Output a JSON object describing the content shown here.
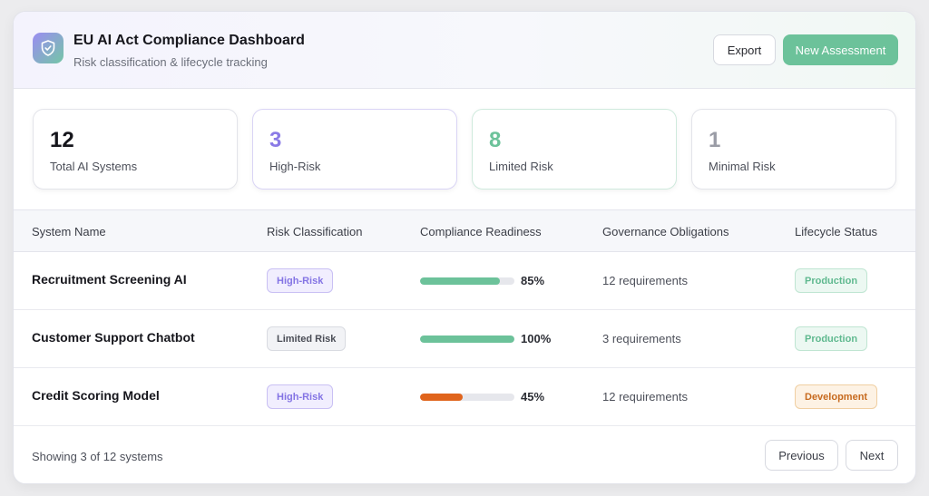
{
  "header": {
    "title": "EU AI Act Compliance Dashboard",
    "subtitle": "Risk classification & lifecycle tracking",
    "logo_icon": "shield-check-icon",
    "export_label": "Export",
    "new_assessment_label": "New Assessment"
  },
  "stats": [
    {
      "value": "12",
      "label": "Total AI Systems",
      "color": "#16161c"
    },
    {
      "value": "3",
      "label": "High-Risk",
      "color": "#8a7ae6"
    },
    {
      "value": "8",
      "label": "Limited Risk",
      "color": "#6cc29a"
    },
    {
      "value": "1",
      "label": "Minimal Risk",
      "color": "#9a9ca6"
    }
  ],
  "table": {
    "columns": [
      "System Name",
      "Risk Classification",
      "Compliance Readiness",
      "Governance Obligations",
      "Lifecycle Status"
    ],
    "rows": [
      {
        "name": "Recruitment Screening AI",
        "risk": "High-Risk",
        "readiness": 85,
        "readiness_label": "85%",
        "readiness_color": "#6cc29a",
        "obligations": "12 requirements",
        "status": "Production"
      },
      {
        "name": "Customer Support Chatbot",
        "risk": "Limited Risk",
        "readiness": 100,
        "readiness_label": "100%",
        "readiness_color": "#6cc29a",
        "obligations": "3 requirements",
        "status": "Production"
      },
      {
        "name": "Credit Scoring Model",
        "risk": "High-Risk",
        "readiness": 45,
        "readiness_label": "45%",
        "readiness_color": "#e0641c",
        "obligations": "12 requirements",
        "status": "Development"
      }
    ]
  },
  "footer": {
    "showing": "Showing 3 of 12 systems",
    "previous_label": "Previous",
    "next_label": "Next"
  },
  "colors": {
    "accent": "#6cc29a",
    "high_risk": "#8a7ae6",
    "development": "#c76a1e"
  }
}
